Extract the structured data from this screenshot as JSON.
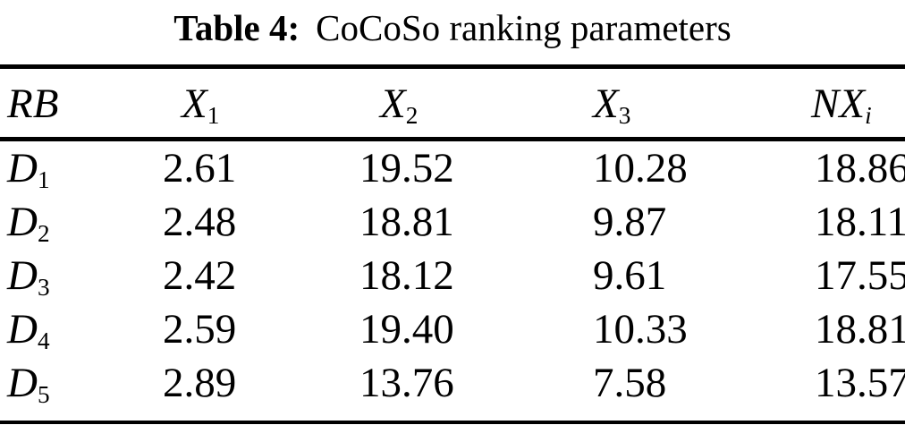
{
  "title": {
    "label": "Table 4:",
    "text": "CoCoSo ranking parameters"
  },
  "table": {
    "columns": [
      {
        "base": "RB",
        "sub": ""
      },
      {
        "base": "X",
        "sub": "1"
      },
      {
        "base": "X",
        "sub": "2"
      },
      {
        "base": "X",
        "sub": "3"
      },
      {
        "base": "NX",
        "sub": "i"
      }
    ],
    "rows": [
      {
        "label": {
          "base": "D",
          "sub": "1"
        },
        "values": [
          "2.61",
          "19.52",
          "10.28",
          "18.86"
        ]
      },
      {
        "label": {
          "base": "D",
          "sub": "2"
        },
        "values": [
          "2.48",
          "18.81",
          "9.87",
          "18.11"
        ]
      },
      {
        "label": {
          "base": "D",
          "sub": "3"
        },
        "values": [
          "2.42",
          "18.12",
          "9.61",
          "17.55"
        ]
      },
      {
        "label": {
          "base": "D",
          "sub": "4"
        },
        "values": [
          "2.59",
          "19.40",
          "10.33",
          "18.81"
        ]
      },
      {
        "label": {
          "base": "D",
          "sub": "5"
        },
        "values": [
          "2.89",
          "13.76",
          "7.58",
          "13.57"
        ]
      }
    ]
  },
  "chart_data": {
    "type": "table",
    "title": "Table 4: CoCoSo ranking parameters",
    "columns": [
      "RB",
      "X_1",
      "X_2",
      "X_3",
      "NX_i"
    ],
    "rows": [
      [
        "D_1",
        2.61,
        19.52,
        10.28,
        18.86
      ],
      [
        "D_2",
        2.48,
        18.81,
        9.87,
        18.11
      ],
      [
        "D_3",
        2.42,
        18.12,
        9.61,
        17.55
      ],
      [
        "D_4",
        2.59,
        19.4,
        10.33,
        18.81
      ],
      [
        "D_5",
        2.89,
        13.76,
        7.58,
        13.57
      ]
    ],
    "colors": {
      "text": "#000000",
      "background": "#ffffff",
      "rule": "#000000"
    }
  }
}
